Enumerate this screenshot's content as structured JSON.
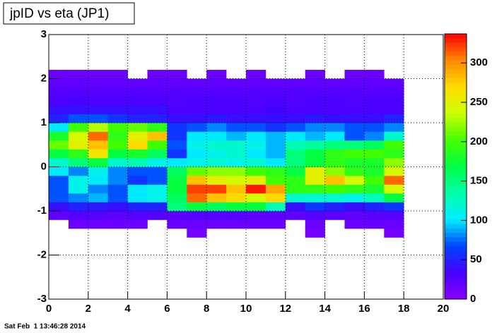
{
  "chart_data": {
    "type": "heatmap",
    "title": "jpID vs eta (JP1)",
    "footer": "Sat Feb  1 13:46:28 2014",
    "x_bins": [
      0,
      1,
      2,
      3,
      4,
      5,
      6,
      7,
      8,
      9,
      10,
      11,
      12,
      13,
      14,
      15,
      16,
      17,
      18
    ],
    "y_bins": [
      -1.6,
      -1.4,
      -1.2,
      -1.0,
      -0.8,
      -0.6,
      -0.4,
      -0.2,
      0.0,
      0.2,
      0.4,
      0.6,
      0.8,
      1.0,
      1.2,
      1.4,
      1.6,
      1.8,
      2.0,
      2.2
    ],
    "z": [
      [
        null,
        null,
        null,
        null,
        null,
        null,
        null,
        10,
        null,
        null,
        null,
        null,
        null,
        10,
        null,
        null,
        null,
        10
      ],
      [
        null,
        15,
        15,
        15,
        15,
        null,
        15,
        15,
        15,
        15,
        15,
        15,
        null,
        15,
        null,
        15,
        15,
        15
      ],
      [
        20,
        25,
        25,
        22,
        25,
        25,
        22,
        25,
        25,
        25,
        22,
        22,
        20,
        25,
        22,
        20,
        22,
        25
      ],
      [
        40,
        50,
        45,
        40,
        50,
        50,
        150,
        170,
        160,
        170,
        170,
        130,
        40,
        60,
        50,
        40,
        50,
        60
      ],
      [
        70,
        80,
        90,
        70,
        100,
        110,
        160,
        310,
        280,
        270,
        240,
        270,
        120,
        120,
        120,
        110,
        130,
        170
      ],
      [
        70,
        110,
        80,
        70,
        100,
        110,
        170,
        320,
        320,
        280,
        330,
        290,
        190,
        190,
        200,
        190,
        180,
        240
      ],
      [
        70,
        110,
        100,
        80,
        60,
        70,
        170,
        280,
        250,
        240,
        250,
        200,
        190,
        250,
        280,
        240,
        200,
        310
      ],
      [
        100,
        80,
        110,
        80,
        70,
        70,
        160,
        210,
        220,
        220,
        200,
        190,
        170,
        250,
        220,
        190,
        180,
        240
      ],
      [
        120,
        150,
        170,
        120,
        130,
        110,
        100,
        110,
        120,
        110,
        120,
        100,
        150,
        170,
        190,
        180,
        180,
        220
      ],
      [
        170,
        190,
        260,
        170,
        180,
        160,
        60,
        100,
        110,
        120,
        100,
        90,
        150,
        170,
        190,
        200,
        200,
        190
      ],
      [
        210,
        250,
        280,
        200,
        270,
        200,
        70,
        110,
        120,
        120,
        110,
        90,
        130,
        140,
        150,
        150,
        160,
        200
      ],
      [
        180,
        240,
        310,
        190,
        250,
        280,
        60,
        100,
        100,
        90,
        100,
        90,
        100,
        90,
        100,
        70,
        80,
        120
      ],
      [
        100,
        200,
        230,
        200,
        210,
        190,
        60,
        70,
        80,
        70,
        70,
        60,
        70,
        80,
        80,
        70,
        70,
        80
      ],
      [
        50,
        70,
        70,
        60,
        50,
        50,
        40,
        40,
        45,
        40,
        40,
        40,
        40,
        45,
        40,
        40,
        40,
        50
      ],
      [
        40,
        40,
        40,
        40,
        40,
        40,
        30,
        30,
        30,
        30,
        30,
        35,
        30,
        30,
        30,
        30,
        30,
        30
      ],
      [
        30,
        32,
        30,
        30,
        30,
        30,
        28,
        30,
        30,
        30,
        28,
        30,
        28,
        30,
        30,
        28,
        30,
        30
      ],
      [
        25,
        25,
        25,
        25,
        25,
        25,
        25,
        25,
        25,
        25,
        25,
        25,
        25,
        25,
        25,
        25,
        25,
        25
      ],
      [
        20,
        20,
        20,
        20,
        20,
        20,
        20,
        20,
        20,
        20,
        20,
        20,
        20,
        20,
        20,
        20,
        20,
        20
      ],
      [
        15,
        15,
        15,
        15,
        null,
        15,
        15,
        null,
        15,
        null,
        15,
        null,
        null,
        15,
        null,
        15,
        15,
        null
      ]
    ],
    "xlim": [
      0,
      20
    ],
    "xticks": [
      0,
      2,
      4,
      6,
      8,
      10,
      12,
      14,
      16,
      18,
      20
    ],
    "ylim": [
      -3,
      3
    ],
    "yticks": [
      -3,
      -2,
      -1,
      0,
      1,
      2,
      3
    ],
    "zlim": [
      0,
      336
    ],
    "zticks": [
      0,
      50,
      100,
      150,
      200,
      250,
      300
    ],
    "grid": true,
    "colorscale": [
      "#8800ff",
      "#4400ff",
      "#0044ff",
      "#00eeff",
      "#00ffaa",
      "#00ff44",
      "#44ff00",
      "#ccff00",
      "#ffdd00",
      "#ff8800",
      "#ff0000"
    ]
  }
}
